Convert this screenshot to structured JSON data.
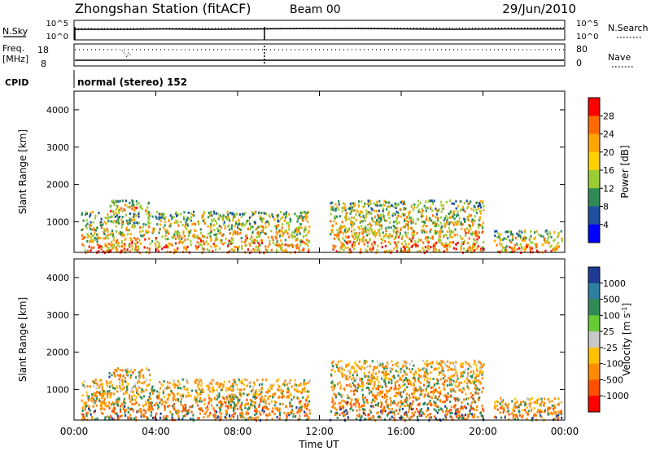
{
  "header": {
    "station": "Zhongshan Station (fitACF)",
    "beam": "Beam 00",
    "date": "29/Jun/2010"
  },
  "top_panels": {
    "nsky_label": "N.Sky",
    "nsearch_label": "N.Search",
    "nsky_ticks": [
      "10^5",
      "10^0"
    ],
    "nsearch_ticks": [
      "10^5",
      "10^0"
    ],
    "freq_label": "Freq.",
    "freq_unit": "[MHz]",
    "freq_ticks": [
      "18",
      "8"
    ],
    "nave_label": "Nave",
    "nave_ticks": [
      "80",
      "0"
    ],
    "cpid_label": "CPID",
    "cpid_value": "normal (stereo) 152"
  },
  "chart_data": [
    {
      "type": "heatmap",
      "title": "",
      "ylabel": "Slant Range [km]",
      "xlabel": "",
      "x_range": [
        "00:00",
        "24:00"
      ],
      "ylim": [
        180,
        4500
      ],
      "y_ticks": [
        "4000",
        "3000",
        "2000",
        "1000"
      ],
      "colorbar": {
        "label": "Power [dB]",
        "ticks": [
          "28",
          "24",
          "20",
          "16",
          "12",
          "8",
          "4"
        ],
        "colors": [
          "#ff0000",
          "#ff6a00",
          "#ffa500",
          "#ffd000",
          "#9acd32",
          "#2e8b57",
          "#1e4fa0",
          "#0000ff"
        ]
      },
      "echo_regions": [
        {
          "t_start": "00:20",
          "t_end": "11:30",
          "range_km": [
            200,
            1300
          ],
          "dominant": "red-orange near 08:00"
        },
        {
          "t_start": "01:40",
          "t_end": "03:40",
          "range_km": [
            1300,
            1600
          ],
          "dominant": "blue"
        },
        {
          "t_start": "12:30",
          "t_end": "20:00",
          "range_km": [
            200,
            1600
          ],
          "dominant": "mixed"
        },
        {
          "t_start": "20:30",
          "t_end": "23:50",
          "range_km": [
            200,
            800
          ],
          "dominant": "red-orange"
        }
      ]
    },
    {
      "type": "heatmap",
      "title": "",
      "ylabel": "Slant Range [km]",
      "xlabel": "Time UT",
      "x_ticks": [
        "00:00",
        "04:00",
        "08:00",
        "12:00",
        "16:00",
        "20:00",
        "00:00"
      ],
      "ylim": [
        180,
        4500
      ],
      "y_ticks": [
        "4000",
        "3000",
        "2000",
        "1000"
      ],
      "colorbar": {
        "label": "Velocity [m s",
        "label_sup": "-1",
        "label_end": "]",
        "ticks": [
          "1000",
          "500",
          "100",
          "25",
          "-25",
          "-100",
          "-500",
          "-1000"
        ],
        "colors": [
          "#1e3c96",
          "#2e7fa0",
          "#2e8b57",
          "#66cc33",
          "#c8c8c8",
          "#ffc000",
          "#ff8c00",
          "#ff5000",
          "#ff0000"
        ]
      },
      "echo_regions": [
        {
          "t_start": "00:20",
          "t_end": "11:30",
          "range_km": [
            200,
            1300
          ],
          "dominant": "orange (negative)"
        },
        {
          "t_start": "01:40",
          "t_end": "03:40",
          "range_km": [
            1300,
            1600
          ],
          "dominant": "grey"
        },
        {
          "t_start": "12:30",
          "t_end": "20:00",
          "range_km": [
            200,
            1800
          ],
          "dominant": "grey / orange"
        },
        {
          "t_start": "20:30",
          "t_end": "23:50",
          "range_km": [
            200,
            800
          ],
          "dominant": "orange"
        }
      ]
    }
  ]
}
